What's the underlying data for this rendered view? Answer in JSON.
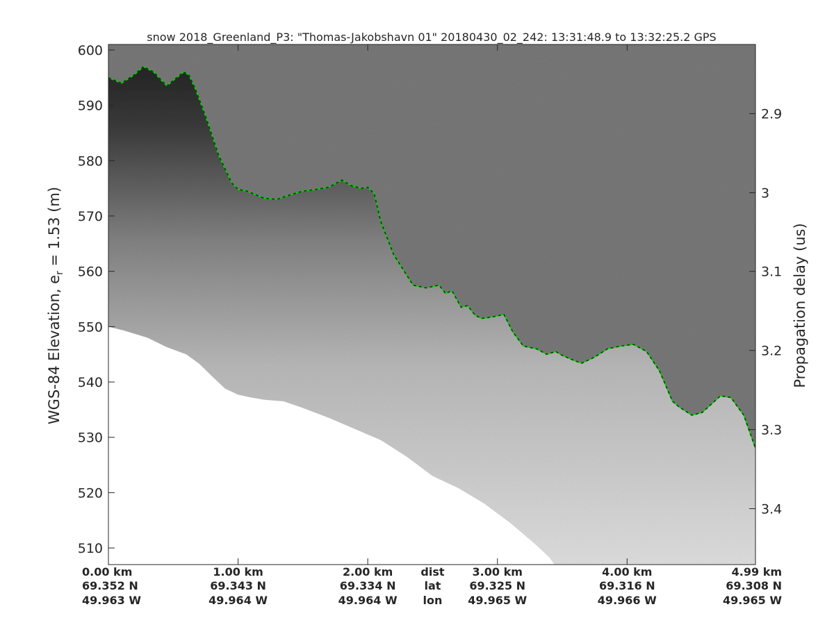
{
  "chart_data": {
    "type": "radar-echogram",
    "title": "snow 2018_Greenland_P3: \"Thomas-Jakobshavn 01\"  20180430_02_242: 13:31:48.9 to 13:32:25.2 GPS",
    "ylabel_left_prefix": "WGS-84 Elevation, e",
    "ylabel_left_sub": "r",
    "ylabel_left_suffix": " = 1.53 (m)",
    "ylabel_right": "Propagation delay (us)",
    "x_range_km": [
      0,
      4.99
    ],
    "ylim": [
      507,
      601
    ],
    "y_ticks": [
      510,
      520,
      530,
      540,
      550,
      560,
      570,
      580,
      590,
      600
    ],
    "y_tick_labels": [
      "510",
      "520",
      "530",
      "540",
      "550",
      "560",
      "570",
      "580",
      "590",
      "600"
    ],
    "right_ticks": [
      {
        "label": "2.9",
        "elevation": 588.5
      },
      {
        "label": "3",
        "elevation": 574.2
      },
      {
        "label": "3.1",
        "elevation": 560.0
      },
      {
        "label": "3.2",
        "elevation": 545.7
      },
      {
        "label": "3.3",
        "elevation": 531.4
      },
      {
        "label": "3.4",
        "elevation": 517.1
      }
    ],
    "bottom_ticks": [
      {
        "dist_km": 0.0,
        "dist": "0.00 km",
        "lat": "69.352 N",
        "lon": "49.963 W"
      },
      {
        "dist_km": 1.0,
        "dist": "1.00 km",
        "lat": "69.343 N",
        "lon": "49.964 W"
      },
      {
        "dist_km": 2.0,
        "dist": "2.00 km",
        "lat": "69.334 N",
        "lon": "49.964 W"
      },
      {
        "dist_km": 3.0,
        "dist": "3.00 km",
        "lat": "69.325 N",
        "lon": "49.965 W"
      },
      {
        "dist_km": 4.0,
        "dist": "4.00 km",
        "lat": "69.316 N",
        "lon": "49.966 W"
      },
      {
        "dist_km": 4.99,
        "dist": "4.99 km",
        "lat": "69.308 N",
        "lon": "49.965 W"
      }
    ],
    "bottom_row_labels": {
      "dist": "dist",
      "lat": "lat",
      "lon": "lon"
    },
    "row_label_position_km": 2.5,
    "surface_km": [
      0.0,
      0.1,
      0.2,
      0.27,
      0.35,
      0.45,
      0.5,
      0.58,
      0.62,
      0.67,
      0.75,
      0.85,
      0.95,
      1.0,
      1.07,
      1.2,
      1.3,
      1.4,
      1.5,
      1.6,
      1.7,
      1.8,
      1.87,
      1.95,
      2.0,
      2.05,
      2.1,
      2.2,
      2.35,
      2.45,
      2.55,
      2.6,
      2.65,
      2.72,
      2.77,
      2.83,
      2.88,
      2.92,
      2.97,
      3.05,
      3.12,
      3.2,
      3.3,
      3.38,
      3.45,
      3.5,
      3.6,
      3.65,
      3.75,
      3.85,
      3.95,
      4.05,
      4.15,
      4.25,
      4.35,
      4.4,
      4.5,
      4.58,
      4.65,
      4.72,
      4.8,
      4.9,
      4.99
    ],
    "surface_elev": [
      595.0,
      594.0,
      595.5,
      597.0,
      596.0,
      593.5,
      594.5,
      596.0,
      595.5,
      593.0,
      588.0,
      581.0,
      576.0,
      574.8,
      574.5,
      573.2,
      573.0,
      573.8,
      574.5,
      574.8,
      575.2,
      576.5,
      575.5,
      575.0,
      575.2,
      574.0,
      569.0,
      563.0,
      557.5,
      557.0,
      557.5,
      556.0,
      556.5,
      553.5,
      553.8,
      552.0,
      551.5,
      551.6,
      551.8,
      552.2,
      549.0,
      546.5,
      546.0,
      545.0,
      545.5,
      544.8,
      543.8,
      543.4,
      544.5,
      546.0,
      546.5,
      546.8,
      545.5,
      542.0,
      536.5,
      535.5,
      534.0,
      534.5,
      536.0,
      537.5,
      537.2,
      534.0,
      528.0
    ],
    "lower_boundary_km": [
      0.0,
      0.12,
      0.3,
      0.45,
      0.6,
      0.7,
      0.8,
      0.9,
      1.0,
      1.1,
      1.2,
      1.35,
      1.5,
      1.7,
      1.9,
      2.1,
      2.3,
      2.5,
      2.7,
      2.9,
      3.1,
      3.3,
      3.4,
      3.44
    ],
    "lower_boundary_elev": [
      550.0,
      549.3,
      548.0,
      546.3,
      545.0,
      543.3,
      541.0,
      538.8,
      537.7,
      537.2,
      536.8,
      536.5,
      535.3,
      533.5,
      531.5,
      529.5,
      526.5,
      523.0,
      520.8,
      518.0,
      514.5,
      510.5,
      508.3,
      507.0
    ],
    "surface_color": "#00d900",
    "surface_dash_color": "#004400"
  }
}
